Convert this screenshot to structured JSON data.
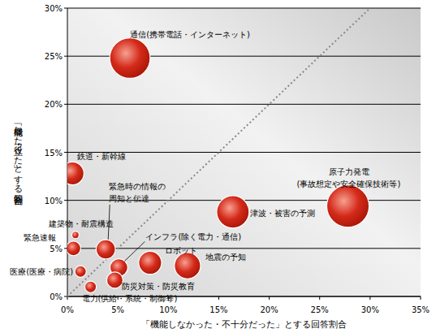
{
  "chart_data": {
    "type": "bubble",
    "x_label": "「機能しなかった・不十分だった」とする回答割合",
    "y_label": "「機能した・役立った」とする回答割合",
    "labels": [
      "通信(携帯電話・インターネット)",
      "鉄道・新幹線",
      "緊急時の情報の\n周知と伝達",
      "建築物・耐震構造",
      "緊急速報",
      "医療(医療・病院)",
      "電力(供給・系統・制御等)",
      "防災対策・防災教育",
      "インフラ(除く電力・通信)",
      "ロボット",
      "地震の予知",
      "津波・被害の予測",
      "原子力発電\n(事故想定や安全確保技術等)"
    ],
    "x": [
      6.2,
      0.5,
      3.8,
      0.8,
      0.6,
      1.3,
      2.3,
      4.7,
      5.1,
      8.2,
      11.9,
      16.4,
      27.8
    ],
    "values": [
      24.8,
      12.8,
      4.9,
      6.4,
      5.0,
      2.6,
      1.0,
      1.7,
      3.0,
      3.5,
      3.2,
      8.8,
      9.4
    ],
    "sizes": [
      62,
      20,
      14,
      2,
      8,
      5,
      5,
      10,
      12,
      20,
      26,
      40,
      68
    ],
    "color": "#d42a1a",
    "xlim": [
      0,
      35
    ],
    "ylim": [
      0,
      30
    ],
    "xticks": [
      {
        "value": 0,
        "label": "0%"
      },
      {
        "value": 5,
        "label": "5%"
      },
      {
        "value": 10,
        "label": "10%"
      },
      {
        "value": 15,
        "label": "15%"
      },
      {
        "value": 20,
        "label": "20%"
      },
      {
        "value": 25,
        "label": "25%"
      },
      {
        "value": 30,
        "label": "30%"
      },
      {
        "value": 35,
        "label": "35%"
      }
    ],
    "yticks": [
      {
        "value": 0,
        "label": "0%"
      },
      {
        "value": 5,
        "label": "5%"
      },
      {
        "value": 10,
        "label": "10%"
      },
      {
        "value": 15,
        "label": "15%"
      },
      {
        "value": 20,
        "label": "20%"
      },
      {
        "value": 25,
        "label": "25%"
      },
      {
        "value": 30,
        "label": "30%"
      }
    ],
    "grid": true
  }
}
